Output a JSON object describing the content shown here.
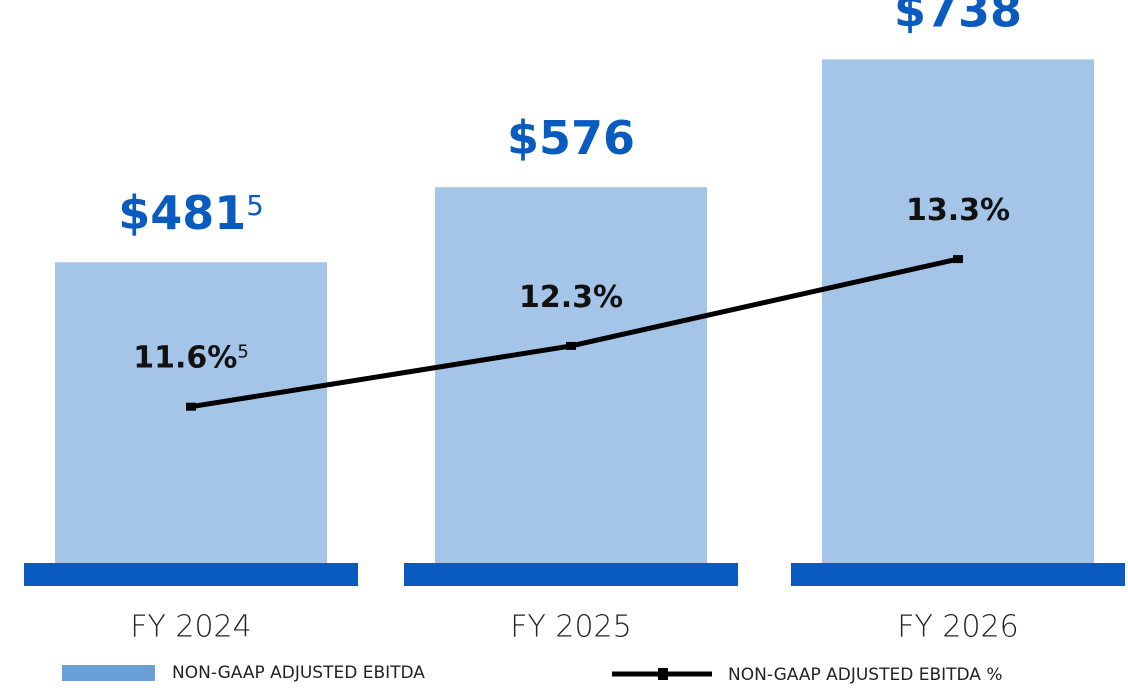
{
  "chart_data": {
    "type": "bar_line",
    "categories": [
      "FY 2024",
      "FY 2025",
      "FY 2026"
    ],
    "series": [
      {
        "name": "NON-GAAP ADJUSTED EBITDA",
        "type": "bar",
        "color": "#a4c5e8",
        "values": [
          481,
          576,
          738
        ],
        "value_labels": [
          "$481",
          "$576",
          "$738"
        ],
        "footnote_markers": [
          "5",
          null,
          null
        ]
      },
      {
        "name": "NON-GAAP ADJUSTED EBITDA %",
        "type": "line",
        "axis": "y2",
        "color": "#000000",
        "values": [
          11.6,
          12.3,
          13.3
        ],
        "value_labels": [
          "11.6%",
          "12.3%",
          "13.3%"
        ],
        "footnote_markers": [
          "5",
          null,
          null
        ]
      }
    ],
    "ylim": [
      100,
      760
    ],
    "y2lim": [
      9.8,
      15.8
    ],
    "label_color": "#0a5bbf",
    "base_color": "#0a5bbf",
    "legend_swatch_color": "#6a9fd6",
    "legend": "bottom"
  }
}
